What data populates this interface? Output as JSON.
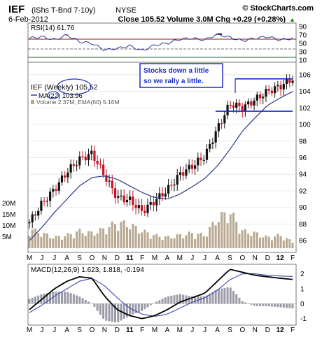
{
  "header": {
    "symbol": "IEF",
    "name": "(iShs T-Bnd 7-10y)",
    "exchange": "NYSE",
    "brand": "© StockCharts.com",
    "date": "6-Feb-2012",
    "quote": "Close 105.52  Volume 3.0M  Chg +0.29 (+0.28%)",
    "quote_arrow": "▲"
  },
  "colors": {
    "price_up": "#111111",
    "price_down": "#cc1122",
    "ma_line": "#2a3a8c",
    "rsi_fill": "#1a2550",
    "annotation": "#1a2ec8",
    "volume": "#b8a890",
    "histogram": "#9a9aa8",
    "panel_bg": "#ffffff"
  },
  "chart_data": [
    {
      "type": "line",
      "panel": "rsi",
      "label": "RSI(14) 61.76",
      "ylim": [
        10,
        90
      ],
      "y_ticks": [
        "90",
        "70",
        "50",
        "30",
        "10"
      ],
      "reference_lines": [
        70,
        50,
        30
      ],
      "x": [
        "May-10",
        "Jun-10",
        "Jul-10",
        "Aug-10",
        "Sep-10",
        "Oct-10",
        "Nov-10",
        "Dec-10",
        "Jan-11",
        "Feb-11",
        "Mar-11",
        "Apr-11",
        "May-11",
        "Jun-11",
        "Jul-11",
        "Aug-11",
        "Sep-11",
        "Oct-11",
        "Nov-11",
        "Dec-11",
        "Jan-12",
        "Feb-12"
      ],
      "values": [
        62,
        66,
        58,
        70,
        54,
        50,
        34,
        38,
        44,
        32,
        46,
        50,
        60,
        62,
        58,
        72,
        64,
        56,
        62,
        66,
        58,
        62
      ]
    },
    {
      "type": "line",
      "panel": "price",
      "title": "IEF (Weekly) 105.52",
      "annotation": [
        "Stocks down a little",
        "so we rally a little."
      ],
      "legend": [
        "MA(22) 103.96",
        "Volume 2.37M, EMA(60) 5.16M"
      ],
      "ylim": [
        85,
        107
      ],
      "y_ticks": [
        "106",
        "104",
        "102",
        "100",
        "98",
        "96",
        "94",
        "92",
        "90",
        "88",
        "86"
      ],
      "volume_ticks": [
        "20M",
        "15M",
        "10M",
        "5M"
      ],
      "resistance_level": 105.5,
      "support_level": 101.6,
      "x_labels": [
        "M",
        "J",
        "J",
        "A",
        "S",
        "O",
        "N",
        "D",
        "11",
        "F",
        "M",
        "A",
        "M",
        "J",
        "J",
        "A",
        "S",
        "O",
        "N",
        "D",
        "12",
        "F"
      ],
      "close_monthly": [
        88.2,
        90.5,
        92.2,
        94.3,
        95.8,
        96.5,
        93.8,
        91.2,
        90.9,
        89.5,
        90.8,
        92.1,
        94.0,
        95.0,
        96.2,
        99.5,
        102.5,
        102.0,
        103.0,
        104.0,
        104.6,
        105.52
      ],
      "ma22_monthly": [
        86.0,
        87.6,
        89.4,
        91.0,
        92.6,
        93.6,
        93.8,
        93.4,
        92.6,
        91.8,
        91.2,
        91.0,
        91.6,
        92.5,
        93.5,
        95.0,
        97.0,
        99.2,
        100.8,
        102.3,
        103.2,
        103.96
      ],
      "volume_monthly_m": [
        9,
        7,
        5,
        6,
        8,
        7,
        9,
        12,
        11,
        8,
        6,
        5,
        6,
        7,
        6,
        14,
        17,
        8,
        7,
        5,
        6,
        3
      ]
    },
    {
      "type": "bar",
      "panel": "macd",
      "label": "MACD(12,26,9) 1.623, 1.818, -0.194",
      "ylim": [
        -1,
        2
      ],
      "y_ticks": [
        "2",
        "1",
        "0",
        "-1"
      ],
      "x_labels": [
        "M",
        "J",
        "J",
        "A",
        "S",
        "O",
        "N",
        "D",
        "11",
        "F",
        "M",
        "A",
        "M",
        "J",
        "J",
        "A",
        "S",
        "O",
        "N",
        "D",
        "12",
        "F"
      ],
      "macd_monthly": [
        -0.4,
        0.3,
        1.0,
        1.5,
        1.8,
        1.7,
        0.5,
        -0.4,
        -0.8,
        -1.0,
        -0.8,
        -0.4,
        0.1,
        0.4,
        0.7,
        1.5,
        2.3,
        2.1,
        1.9,
        1.8,
        1.7,
        1.623
      ],
      "signal_monthly": [
        -0.6,
        -0.1,
        0.5,
        1.0,
        1.5,
        1.7,
        1.2,
        0.4,
        -0.3,
        -0.7,
        -0.85,
        -0.7,
        -0.3,
        0.1,
        0.4,
        0.9,
        1.6,
        2.0,
        2.0,
        1.9,
        1.85,
        1.818
      ]
    }
  ]
}
